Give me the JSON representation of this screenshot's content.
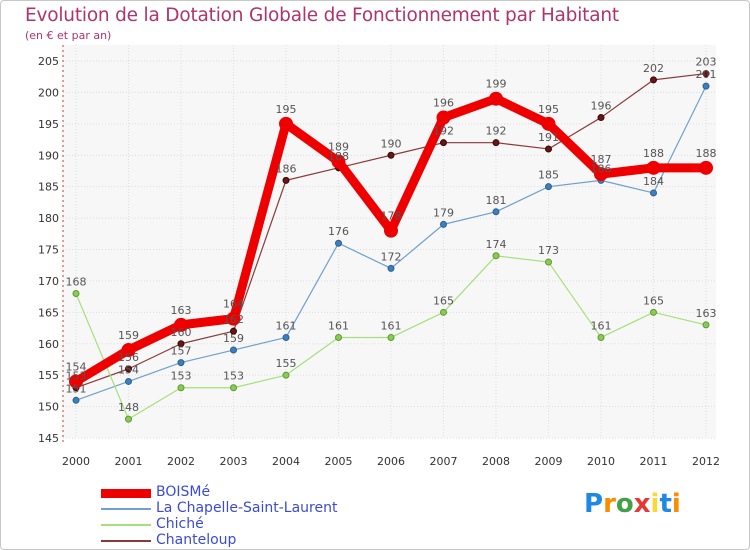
{
  "chart_data": {
    "type": "line",
    "title": "Evolution de la Dotation Globale de Fonctionnement par Habitant",
    "subtitle": "(en € et par an)",
    "xlabel": "",
    "ylabel": "",
    "categories": [
      "2000",
      "2001",
      "2002",
      "2003",
      "2004",
      "2005",
      "2006",
      "2007",
      "2008",
      "2009",
      "2010",
      "2011",
      "2012"
    ],
    "ylim": [
      145,
      205
    ],
    "yticks": [
      145,
      150,
      155,
      160,
      165,
      170,
      175,
      180,
      185,
      190,
      195,
      200,
      205
    ],
    "grid": true,
    "legend_position": "bottom-left",
    "series": [
      {
        "name": "BOISMé",
        "color": "#ee0000",
        "values": [
          154,
          159,
          163,
          164,
          195,
          189,
          178,
          196,
          199,
          195,
          187,
          188,
          188
        ]
      },
      {
        "name": "La Chapelle-Saint-Laurent",
        "color": "#5b93c8",
        "values": [
          151,
          154,
          157,
          159,
          161,
          176,
          172,
          179,
          181,
          185,
          186,
          184,
          201
        ]
      },
      {
        "name": "Chiché",
        "color": "#99dd66",
        "values": [
          168,
          148,
          153,
          153,
          155,
          161,
          161,
          165,
          174,
          173,
          161,
          165,
          163
        ]
      },
      {
        "name": "Chanteloup",
        "color": "#7a2a2a",
        "values": [
          153,
          156,
          160,
          162,
          186,
          188,
          190,
          192,
          192,
          191,
          196,
          202,
          203
        ]
      }
    ]
  },
  "logo": {
    "text": "Proxiti",
    "letters": [
      "P",
      "r",
      "o",
      "x",
      "i",
      "t",
      "i"
    ],
    "colors": [
      "#1e88e5",
      "#fb8c00",
      "#43a047",
      "#e53935",
      "#fdd835",
      "#1e88e5",
      "#fb8c00"
    ]
  }
}
